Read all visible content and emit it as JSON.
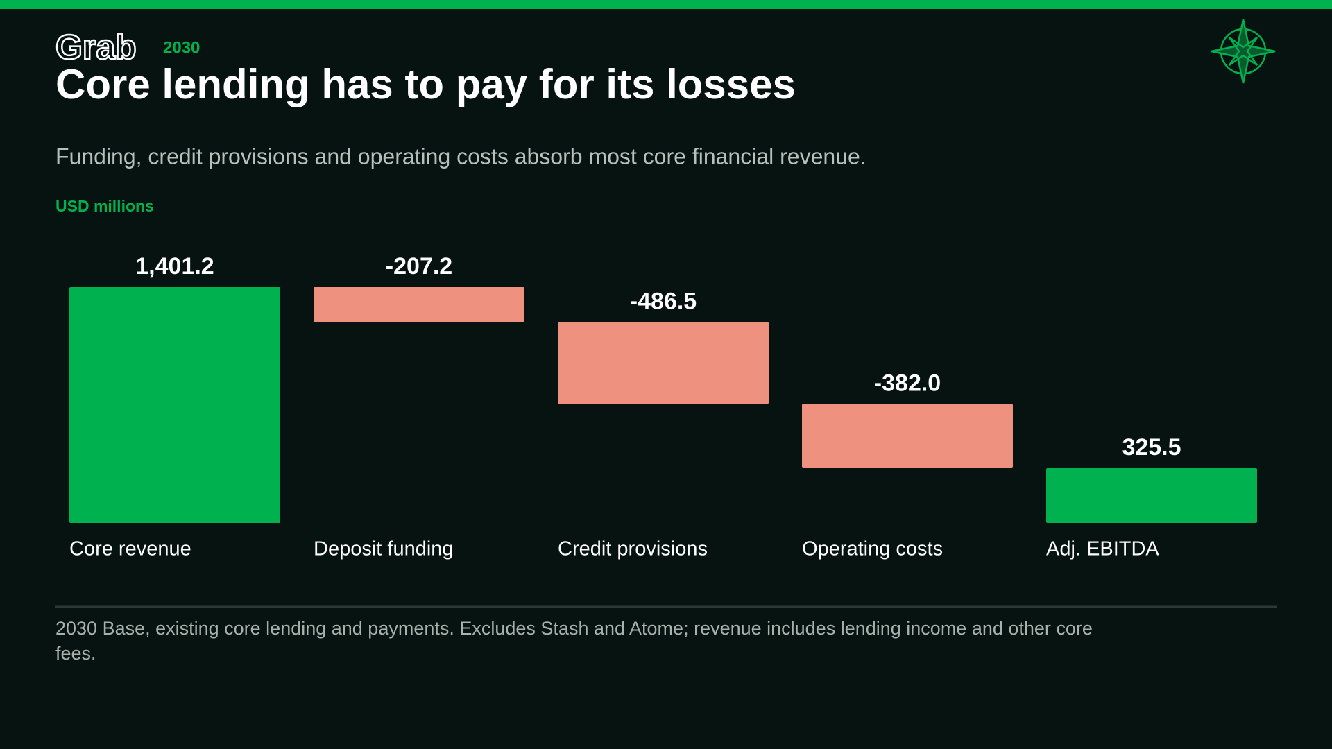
{
  "header": {
    "brand": "Grab",
    "tag": "2030"
  },
  "chart_data": {
    "type": "waterfall",
    "title": "Core lending has to pay for its losses",
    "subtitle": "Funding, credit provisions and operating costs absorb most core financial revenue.",
    "unit_label": "USD millions",
    "categories": [
      "Core revenue",
      "Deposit funding",
      "Credit provisions",
      "Operating costs",
      "Adj. EBITDA"
    ],
    "values": [
      1401.2,
      -207.2,
      -486.5,
      -382.0,
      325.5
    ],
    "value_labels": [
      "1,401.2",
      "-207.2",
      "-486.5",
      "-382.0",
      "325.5"
    ],
    "total_color": "#00b14f",
    "decrease_color": "#ee917e",
    "note": "2030 Base, existing core lending and payments. Excludes Stash and Atome; revenue includes lending income and other core fees."
  }
}
